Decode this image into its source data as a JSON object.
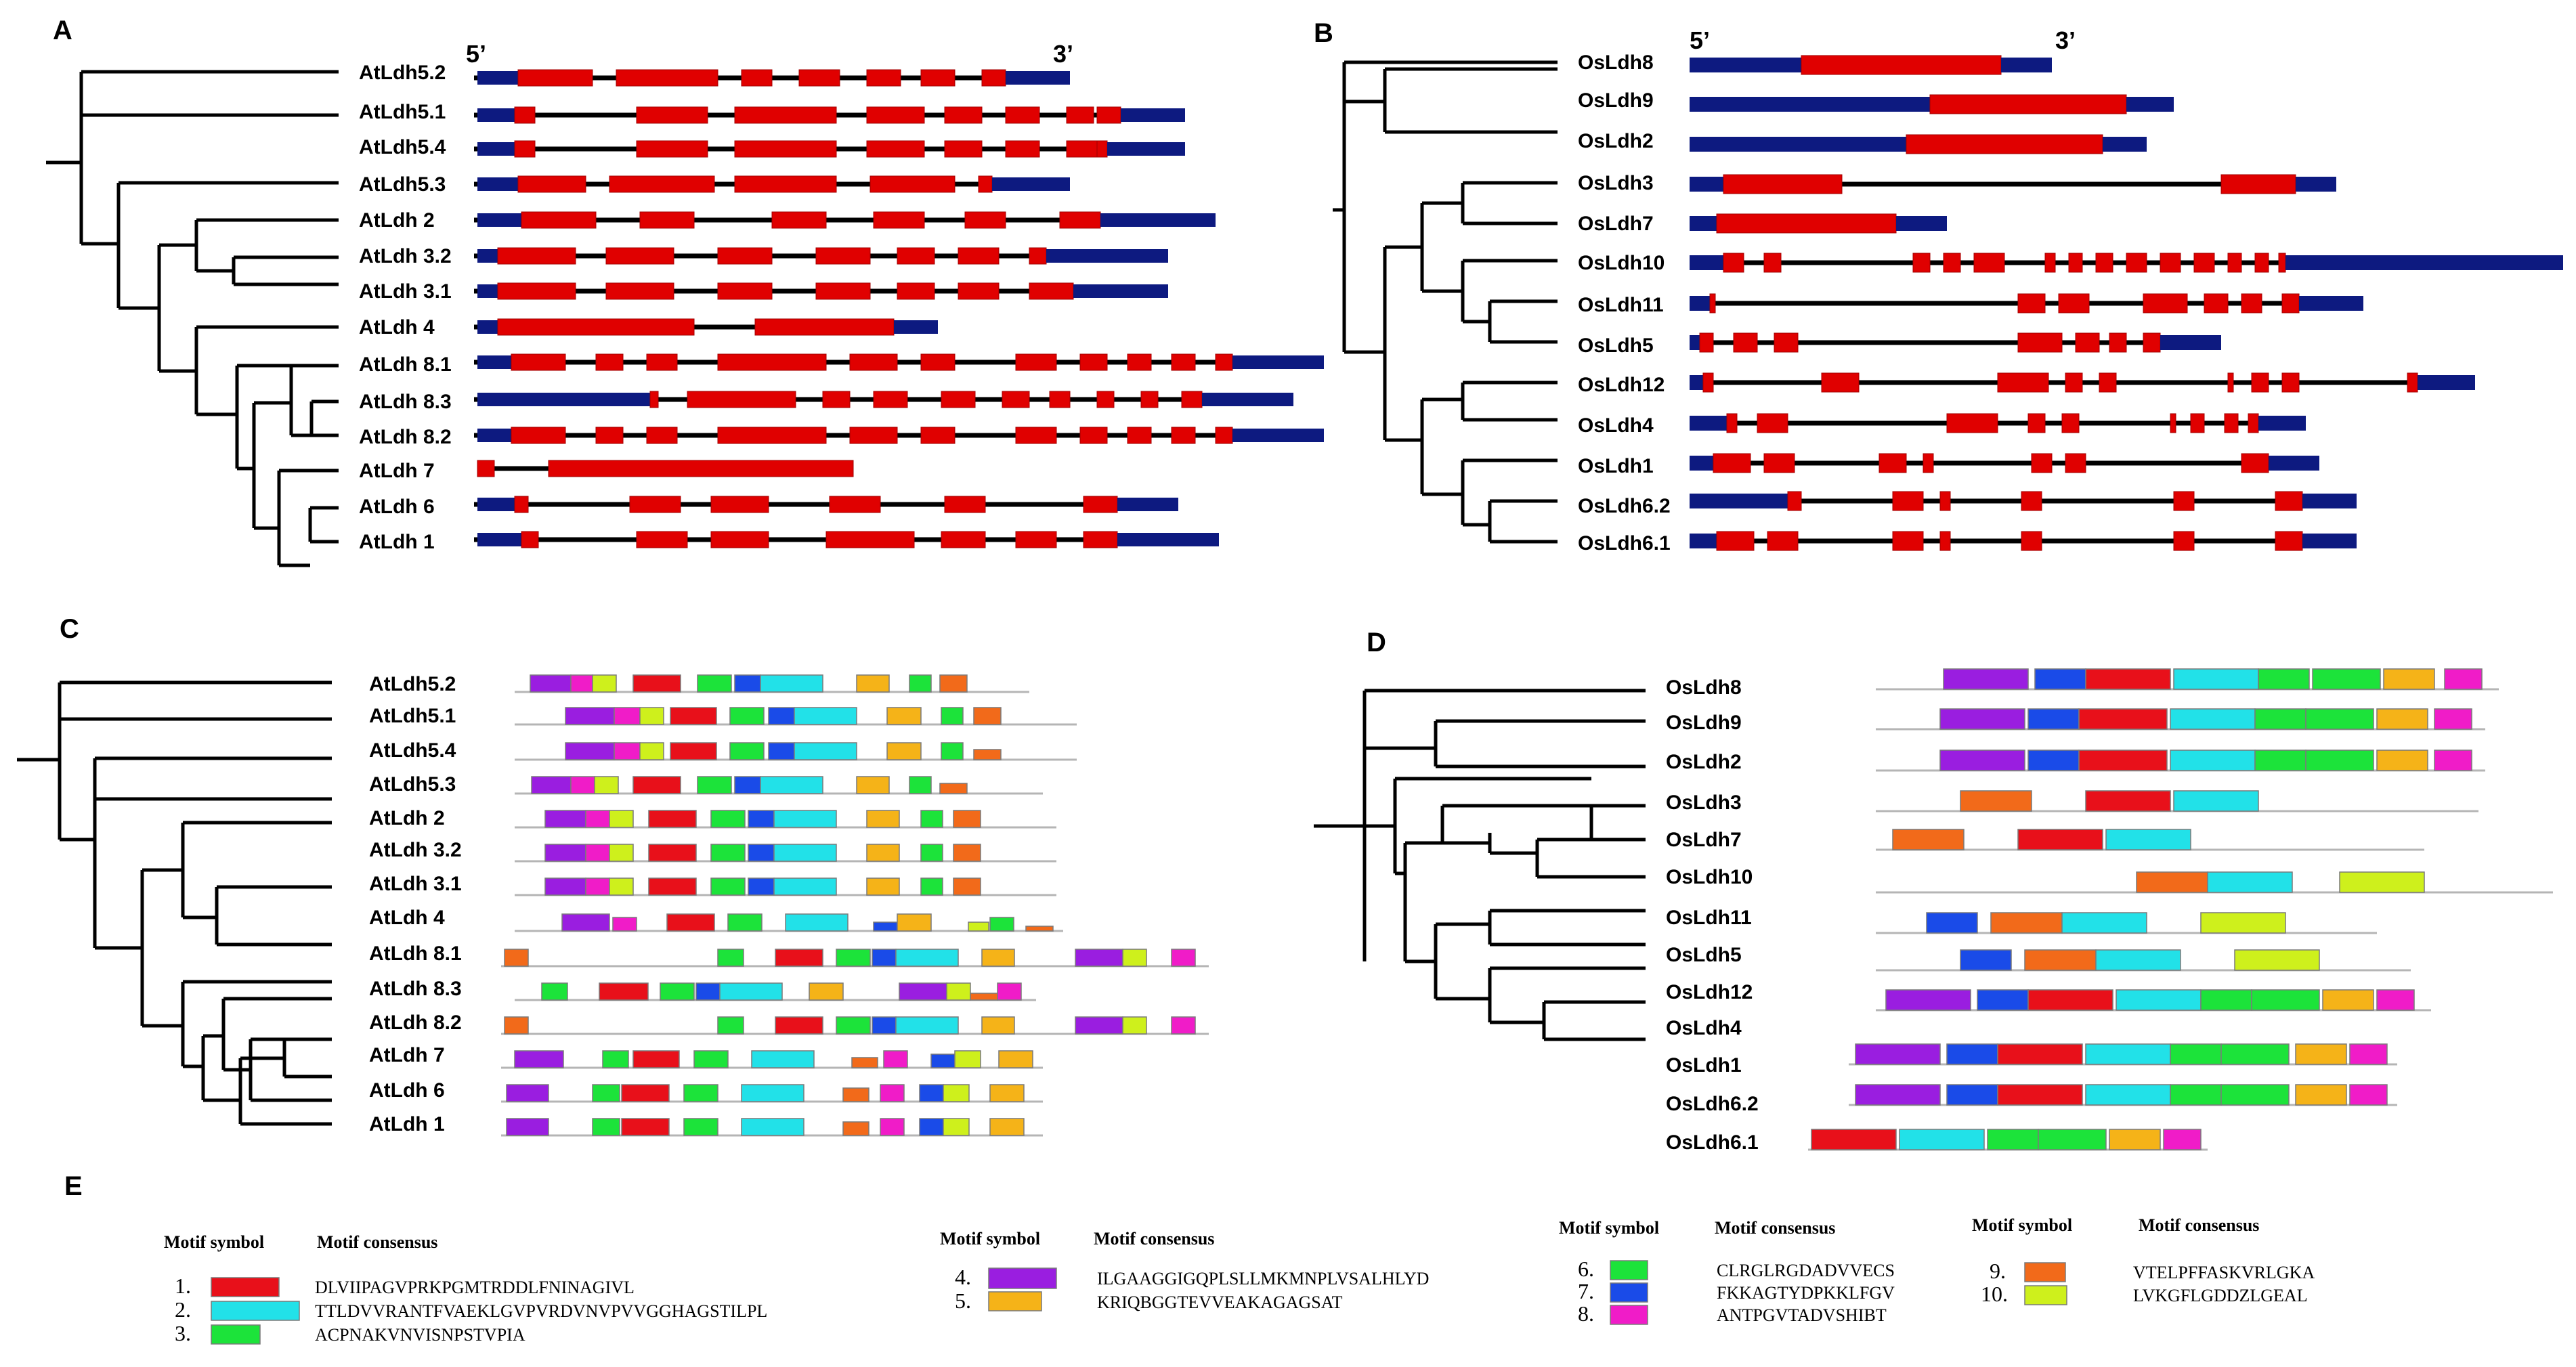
{
  "colors": {
    "utr": "#0d1a80",
    "exon": "#e00000",
    "intron": "#000000",
    "track": "#b5b5b5"
  },
  "panels": {
    "A": {
      "label": "A",
      "five_prime": "5’",
      "three_prime": "3’",
      "genes": [
        "AtLdh5.2",
        "AtLdh5.1",
        "AtLdh5.4",
        "AtLdh5.3",
        "AtLdh 2",
        "AtLdh 3.2",
        "AtLdh 3.1",
        "AtLdh 4",
        "AtLdh 8.1",
        "AtLdh 8.3",
        "AtLdh 8.2",
        "AtLdh 7",
        "AtLdh 6",
        "AtLdh 1"
      ]
    },
    "B": {
      "label": "B",
      "five_prime": "5’",
      "three_prime": "3’",
      "genes": [
        "OsLdh8",
        "OsLdh9",
        "OsLdh2",
        "OsLdh3",
        "OsLdh7",
        "OsLdh10",
        "OsLdh11",
        "OsLdh5",
        "OsLdh12",
        "OsLdh4",
        "OsLdh1",
        "OsLdh6.2",
        "OsLdh6.1"
      ]
    },
    "C": {
      "label": "C",
      "genes": [
        "AtLdh5.2",
        "AtLdh5.1",
        "AtLdh5.4",
        "AtLdh5.3",
        "AtLdh 2",
        "AtLdh 3.2",
        "AtLdh 3.1",
        "AtLdh 4",
        "AtLdh 8.1",
        "AtLdh 8.3",
        "AtLdh 8.2",
        "AtLdh 7",
        "AtLdh 6",
        "AtLdh 1"
      ]
    },
    "D": {
      "label": "D",
      "genes": [
        "OsLdh8",
        "OsLdh9",
        "OsLdh2",
        "OsLdh3",
        "OsLdh7",
        "OsLdh10",
        "OsLdh11",
        "OsLdh5",
        "OsLdh12",
        "OsLdh4",
        "OsLdh1",
        "OsLdh6.2",
        "OsLdh6.1"
      ]
    },
    "E": {
      "label": "E",
      "header_symbol": "Motif symbol",
      "header_consensus": "Motif consensus",
      "motifs": [
        {
          "num": "1.",
          "color": "#e8101a",
          "consensus": "DLVIIPAGVPRKPGMTRDDLFNINAGIVL"
        },
        {
          "num": "2.",
          "color": "#22e1e8",
          "consensus": "TTLDVVRANTFVAEKLGVPVRDVNVPVVGGHAGSTILPL"
        },
        {
          "num": "3.",
          "color": "#1ce33a",
          "consensus": "ACPNAKVNVISNPSTVPIA"
        },
        {
          "num": "4.",
          "color": "#9a1ee0",
          "consensus": "ILGAAGGIGQPLSLLMKMNPLVSALHLYD"
        },
        {
          "num": "5.",
          "color": "#f5b318",
          "consensus": "KRIQBGGTEVVEAKAGAGSAT"
        },
        {
          "num": "6.",
          "color": "#1ce33a",
          "consensus": "CLRGLRGDADVVECS"
        },
        {
          "num": "7.",
          "color": "#1a4be8",
          "consensus": "FKKAGTYDPKKLFGV"
        },
        {
          "num": "8.",
          "color": "#f01cc8",
          "consensus": "ANTPGVTADVSHIBT"
        },
        {
          "num": "9.",
          "color": "#f26a1a",
          "consensus": "VTELPFFASKVRLGKA"
        },
        {
          "num": "10.",
          "color": "#cef01c",
          "consensus": "LVKGFLGDDZLGEAL"
        }
      ]
    }
  }
}
